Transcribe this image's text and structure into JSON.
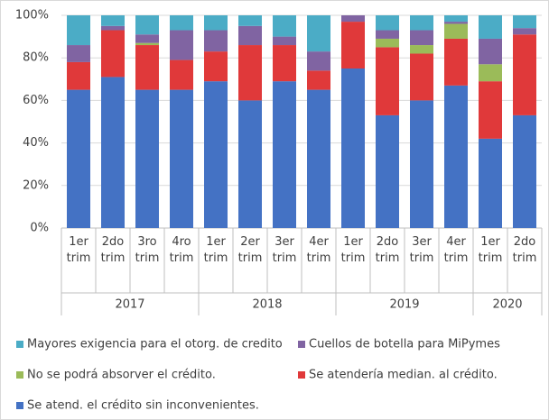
{
  "chart_data": {
    "type": "stacked_bar",
    "groups": [
      {
        "label": "2017",
        "categories": [
          "1er trim",
          "2do trim",
          "3ro trim",
          "4ro trim"
        ]
      },
      {
        "label": "2018",
        "categories": [
          "1er trim",
          "2er trim",
          "3er trim",
          "4er trim"
        ]
      },
      {
        "label": "2019",
        "categories": [
          "1er trim",
          "2do trim",
          "3er trim",
          "4er trim"
        ]
      },
      {
        "label": "2020",
        "categories": [
          "1er trim",
          "2do trim"
        ]
      }
    ],
    "series": [
      {
        "name": "Se atend. el crédito sin  inconvenientes.",
        "color": "#4472c4",
        "values": [
          65,
          71,
          65,
          65,
          69,
          60,
          69,
          65,
          75,
          53,
          60,
          67,
          42,
          53
        ]
      },
      {
        "name": "Se atendería median. al crédito.",
        "color": "#e0393a",
        "values": [
          13,
          22,
          21,
          14,
          14,
          26,
          17,
          9,
          22,
          32,
          22,
          22,
          27,
          38
        ]
      },
      {
        "name": "No se podrá absorver el crédito.",
        "color": "#9bbb59",
        "values": [
          0,
          0,
          1,
          0,
          0,
          0,
          0,
          0,
          0,
          4,
          4,
          7,
          8,
          0
        ]
      },
      {
        "name": "Cuellos de botella para MiPymes",
        "color": "#8064a2",
        "values": [
          8,
          2,
          4,
          14,
          10,
          9,
          4,
          9,
          3,
          4,
          7,
          1,
          12,
          3
        ]
      },
      {
        "name": "Mayores exigencia para el otorg. de credito",
        "color": "#4bacc6",
        "values": [
          14,
          5,
          9,
          7,
          7,
          5,
          10,
          17,
          0,
          7,
          7,
          3,
          11,
          6
        ]
      }
    ],
    "ylim": [
      0,
      100
    ],
    "yticks": [
      {
        "value": 0,
        "label": "0%"
      },
      {
        "value": 20,
        "label": "20%"
      },
      {
        "value": 40,
        "label": "40%"
      },
      {
        "value": 60,
        "label": "60%"
      },
      {
        "value": 80,
        "label": "80%"
      },
      {
        "value": 100,
        "label": "100%"
      }
    ],
    "grid": true
  }
}
